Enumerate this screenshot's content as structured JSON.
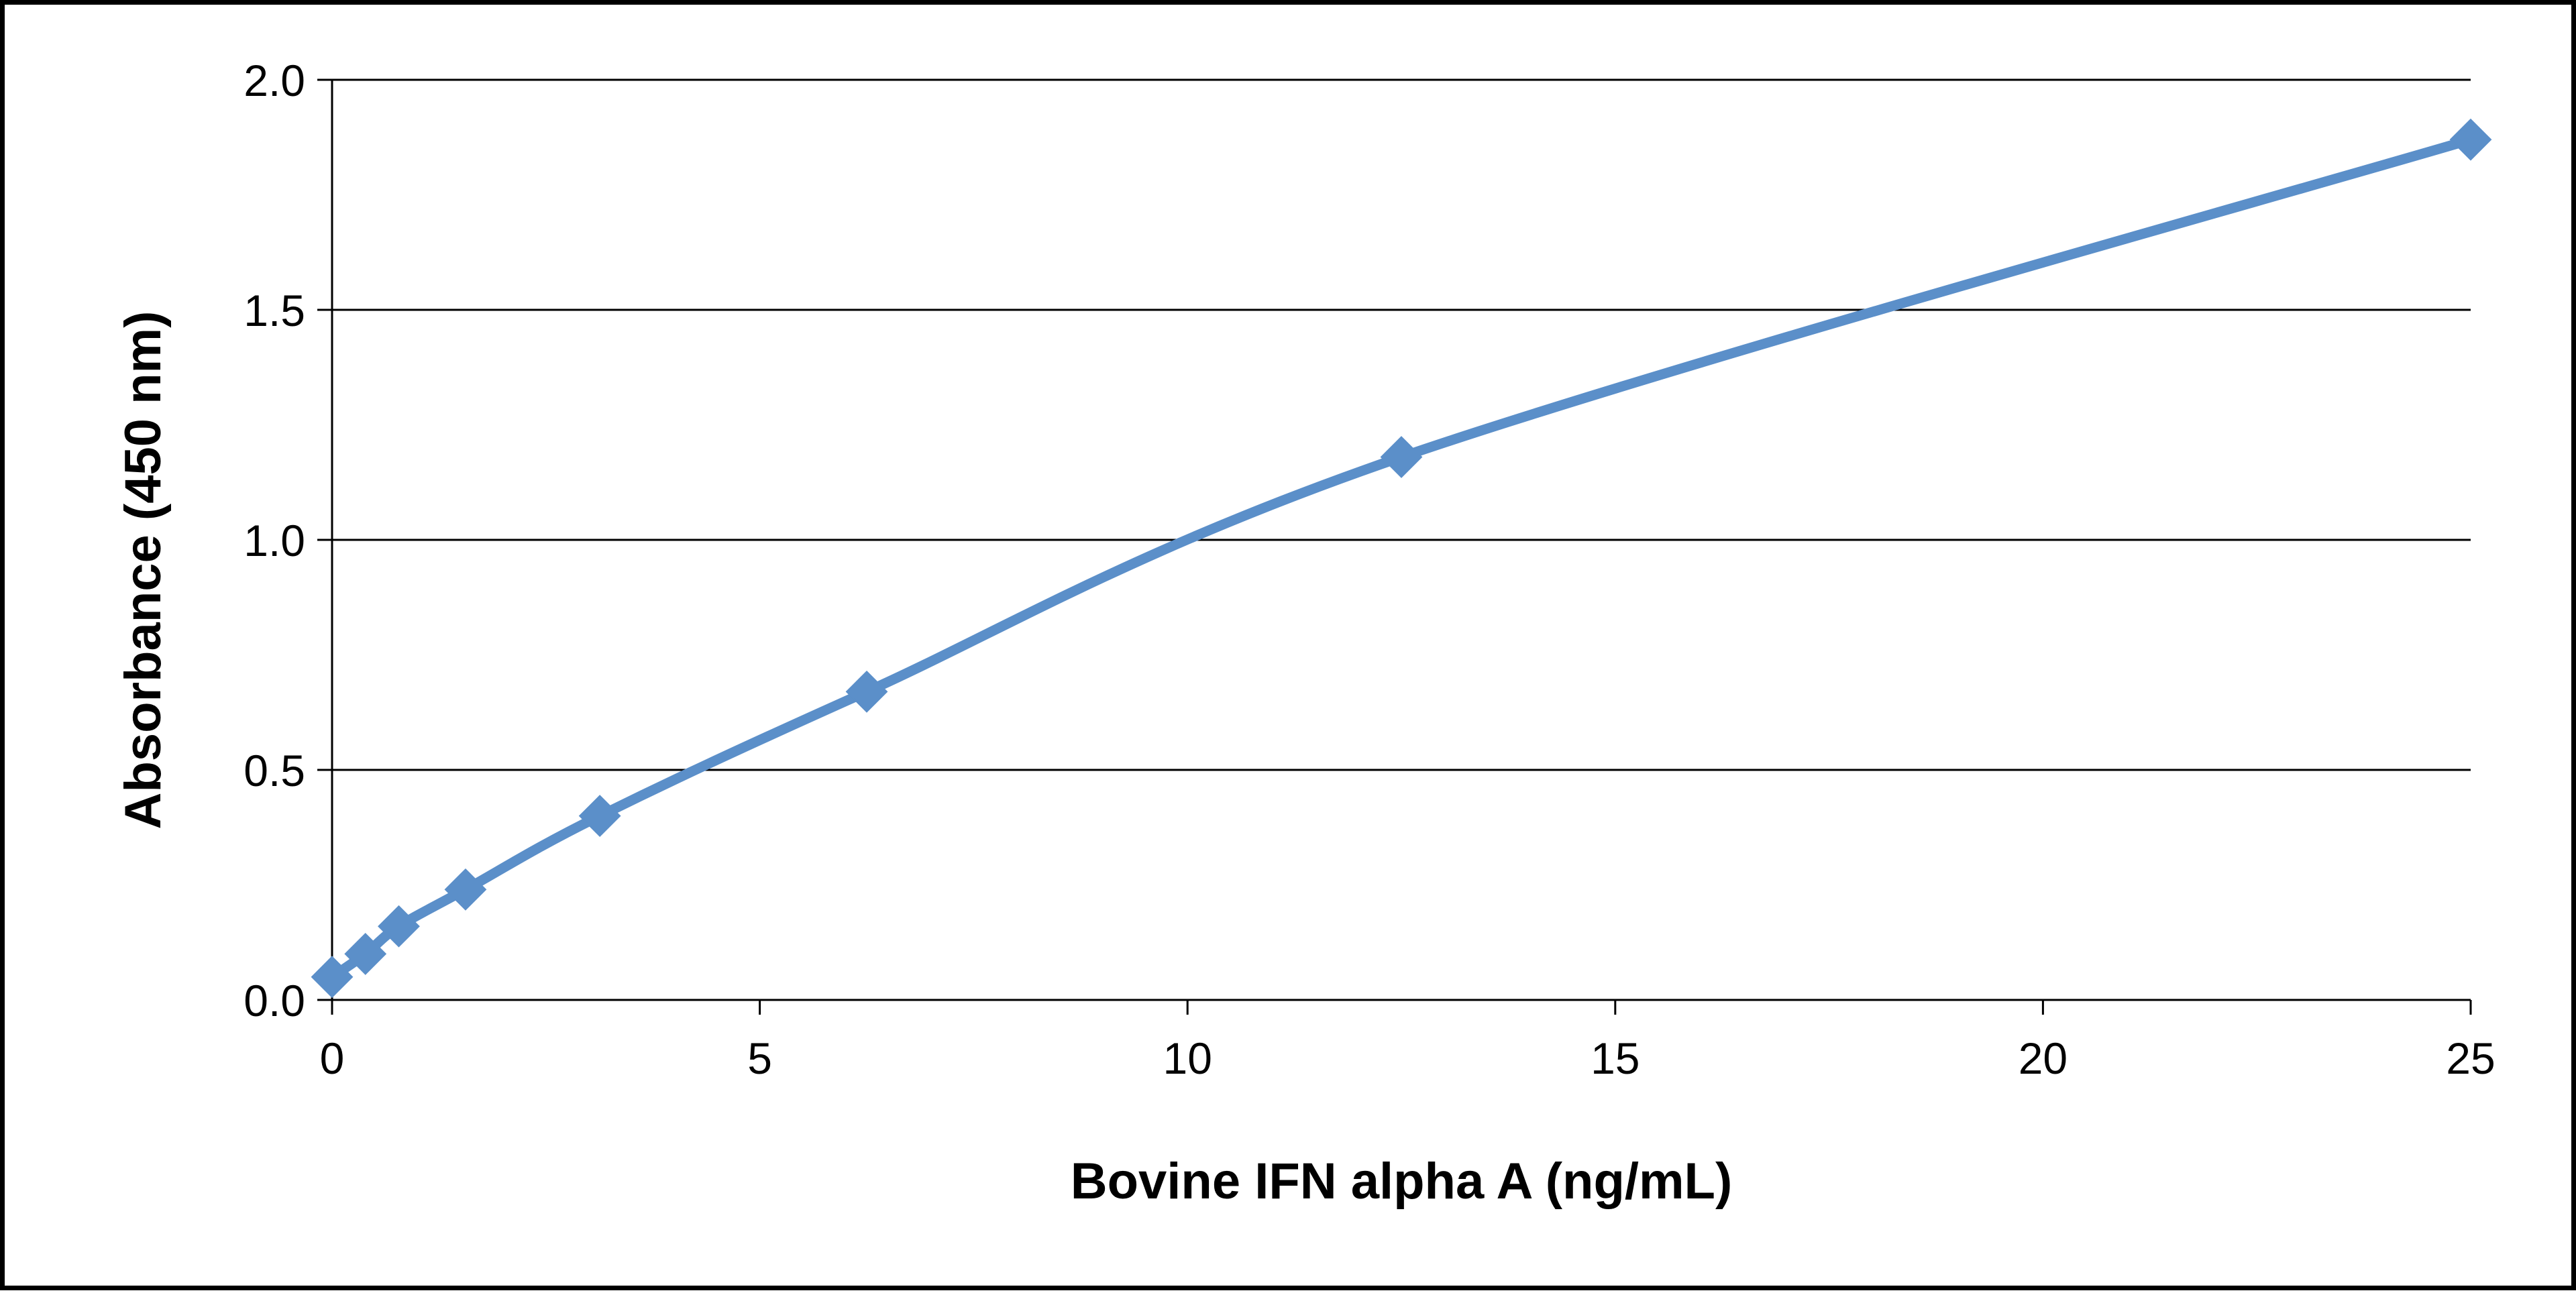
{
  "chart_data": {
    "type": "line",
    "title": "",
    "xlabel": "Bovine IFN alpha A (ng/mL)",
    "ylabel": "Absorbance (450 nm)",
    "xlim": [
      0,
      25
    ],
    "ylim": [
      0,
      2.0
    ],
    "x_ticks": [
      "0",
      "5",
      "10",
      "15",
      "20",
      "25"
    ],
    "y_ticks": [
      "0.0",
      "0.5",
      "1.0",
      "1.5",
      "2.0"
    ],
    "grid": "horizontal",
    "legend": "none",
    "series": [
      {
        "x": [
          0,
          0.39,
          0.78,
          1.56,
          3.13,
          6.25,
          12.5,
          25
        ],
        "y": [
          0.05,
          0.1,
          0.16,
          0.24,
          0.4,
          0.67,
          1.18,
          1.87
        ],
        "color": "#5B8FC9",
        "marker": "diamond"
      }
    ]
  }
}
